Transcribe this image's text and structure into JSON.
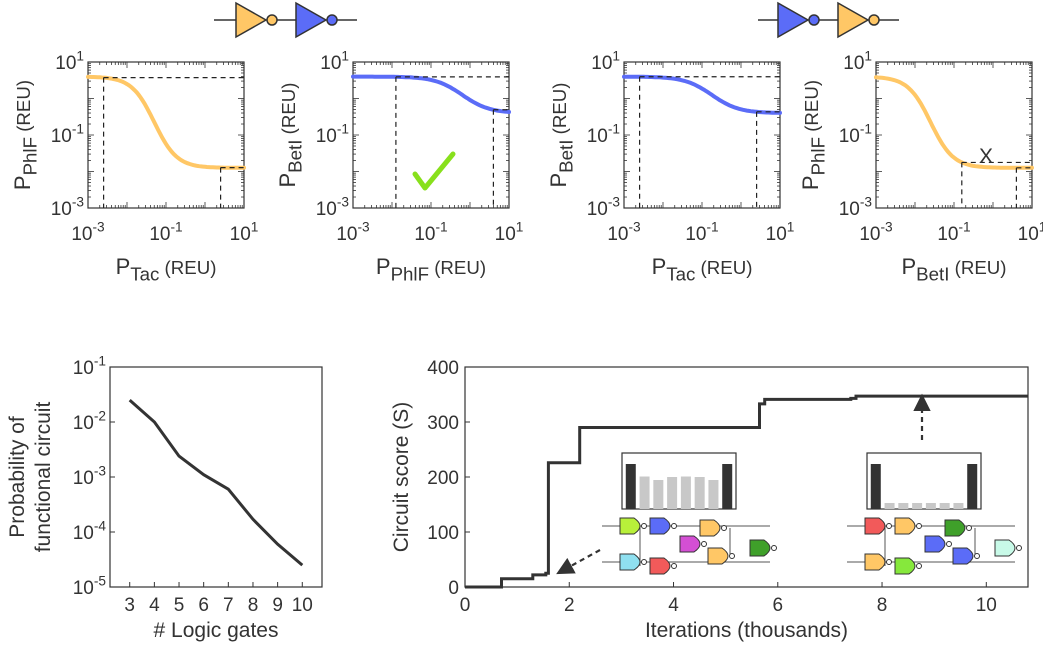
{
  "colors": {
    "orange": "#ffc766",
    "blue": "#5b6cf7",
    "green_check": "#88e01c",
    "red_x": "#f25a5a",
    "line_dark": "#333333",
    "bar_dark": "#333333",
    "bar_light": "#c8c8c8"
  },
  "top_panels": [
    {
      "id": "p1",
      "color": "orange",
      "ylabel": "P",
      "ylabel_sub": "PhlF",
      "ylabel_unit": "(REU)",
      "xlabel": "P",
      "xlabel_sub": "Tac",
      "xlabel_unit": "(REU)",
      "curve": {
        "ymax_log": 0.6,
        "ymin_log": -1.9,
        "x0_log": -1.3,
        "steep": 6
      },
      "lo_input_log": -2.6,
      "hi_input_log": 0.4,
      "mark": ""
    },
    {
      "id": "p2",
      "color": "blue",
      "ylabel": "P",
      "ylabel_sub": "BetI",
      "ylabel_unit": "(REU)",
      "xlabel": "P",
      "xlabel_sub": "PhlF",
      "xlabel_unit": "(REU)",
      "curve": {
        "ymax_log": 0.6,
        "ymin_log": -0.4,
        "x0_log": -0.2,
        "steep": 5
      },
      "lo_input_log": -1.9,
      "hi_input_log": 0.6,
      "mark": "check"
    },
    {
      "id": "p3",
      "color": "blue",
      "ylabel": "P",
      "ylabel_sub": "BetI",
      "ylabel_unit": "(REU)",
      "xlabel": "P",
      "xlabel_sub": "Tac",
      "xlabel_unit": "(REU)",
      "curve": {
        "ymax_log": 0.6,
        "ymin_log": -0.4,
        "x0_log": -0.75,
        "steep": 5
      },
      "lo_input_log": -2.6,
      "hi_input_log": 0.4,
      "mark": ""
    },
    {
      "id": "p4",
      "color": "orange",
      "ylabel": "P",
      "ylabel_sub": "PhlF",
      "ylabel_unit": "(REU)",
      "xlabel": "P",
      "xlabel_sub": "BetI",
      "xlabel_unit": "(REU)",
      "curve": {
        "ymax_log": 0.6,
        "ymin_log": -1.9,
        "x0_log": -1.6,
        "steep": 6
      },
      "lo_input_log": -0.8,
      "hi_input_log": 0.6,
      "mark": "x"
    }
  ],
  "top_axis": {
    "xlim_log": [
      -3,
      1
    ],
    "ylim_log": [
      -3,
      1
    ],
    "ticks": [
      "10",
      "10",
      "10"
    ],
    "tick_exps": [
      "-3",
      "-1",
      "1"
    ]
  },
  "mark_x_text": "X",
  "mark_check_text": "✓",
  "chart_data": [
    {
      "type": "line",
      "title": "",
      "xlabel": "# Logic gates",
      "ylabel": "Probability of functional circuit",
      "yscale": "log",
      "x": [
        3,
        4,
        5,
        6,
        7,
        8,
        9,
        10
      ],
      "y": [
        0.025,
        0.01,
        0.0024,
        0.0011,
        0.0006,
        0.00017,
        6e-05,
        2.5e-05
      ],
      "xticks": [
        "3",
        "4",
        "5",
        "6",
        "7",
        "8",
        "9",
        "10"
      ],
      "ylim": [
        1e-05,
        0.1
      ],
      "ytick_mant": [
        "10",
        "10",
        "10",
        "10",
        "10"
      ],
      "ytick_exp": [
        "-1",
        "-2",
        "-3",
        "-4",
        "-5"
      ]
    },
    {
      "type": "line",
      "step": true,
      "title": "",
      "xlabel": "Iterations (thousands)",
      "ylabel": "Circuit score (S)",
      "xlim": [
        0,
        10.8
      ],
      "ylim": [
        0,
        400
      ],
      "xticks": [
        "0",
        "2",
        "4",
        "6",
        "8",
        "10"
      ],
      "yticks": [
        "0",
        "100",
        "200",
        "300",
        "400"
      ],
      "x": [
        0,
        0.7,
        0.7,
        1.3,
        1.3,
        1.55,
        1.55,
        1.6,
        1.6,
        2.2,
        2.2,
        5.65,
        5.65,
        5.75,
        5.75,
        7.4,
        7.4,
        7.5,
        7.5,
        10.8
      ],
      "y": [
        0,
        0,
        15,
        15,
        22,
        22,
        25,
        25,
        226,
        226,
        290,
        290,
        333,
        333,
        341,
        341,
        343,
        343,
        347,
        347
      ],
      "inset_bars_low": [
        0.9,
        0.65,
        0.58,
        0.64,
        0.65,
        0.64,
        0.58,
        0.9
      ],
      "inset_bars_high": [
        0.9,
        0.12,
        0.12,
        0.12,
        0.12,
        0.12,
        0.12,
        0.9
      ]
    }
  ]
}
